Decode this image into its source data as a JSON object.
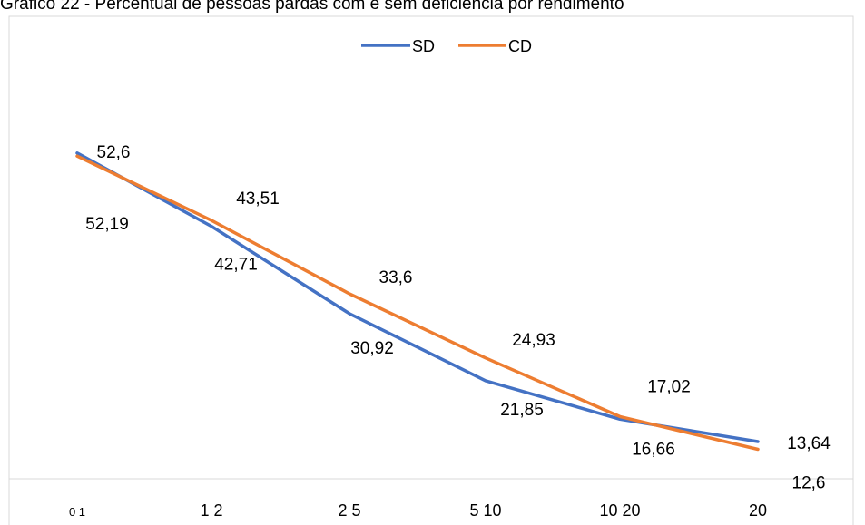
{
  "chart_data": {
    "type": "line",
    "title": "Gráfico 22 - Percentual de pessoas pardas com e sem deficiência por rendimento",
    "categories": [
      "0 1",
      "1 2",
      "2 5",
      "5 10",
      "10 20",
      "20"
    ],
    "series": [
      {
        "name": "SD",
        "color": "#4472C4",
        "values": [
          52.6,
          42.71,
          30.92,
          21.85,
          16.66,
          13.64
        ],
        "labels": [
          "52,6",
          "42,71",
          "30,92",
          "21,85",
          "16,66",
          "13,64"
        ]
      },
      {
        "name": "CD",
        "color": "#ED7D31",
        "values": [
          52.19,
          43.51,
          33.6,
          24.93,
          17.02,
          12.6
        ],
        "labels": [
          "52,19",
          "43,51",
          "33,6",
          "24,93",
          "17,02",
          "12,6"
        ]
      }
    ],
    "ylim": [
      0,
      60
    ],
    "legend": "top-center",
    "grid": false
  }
}
